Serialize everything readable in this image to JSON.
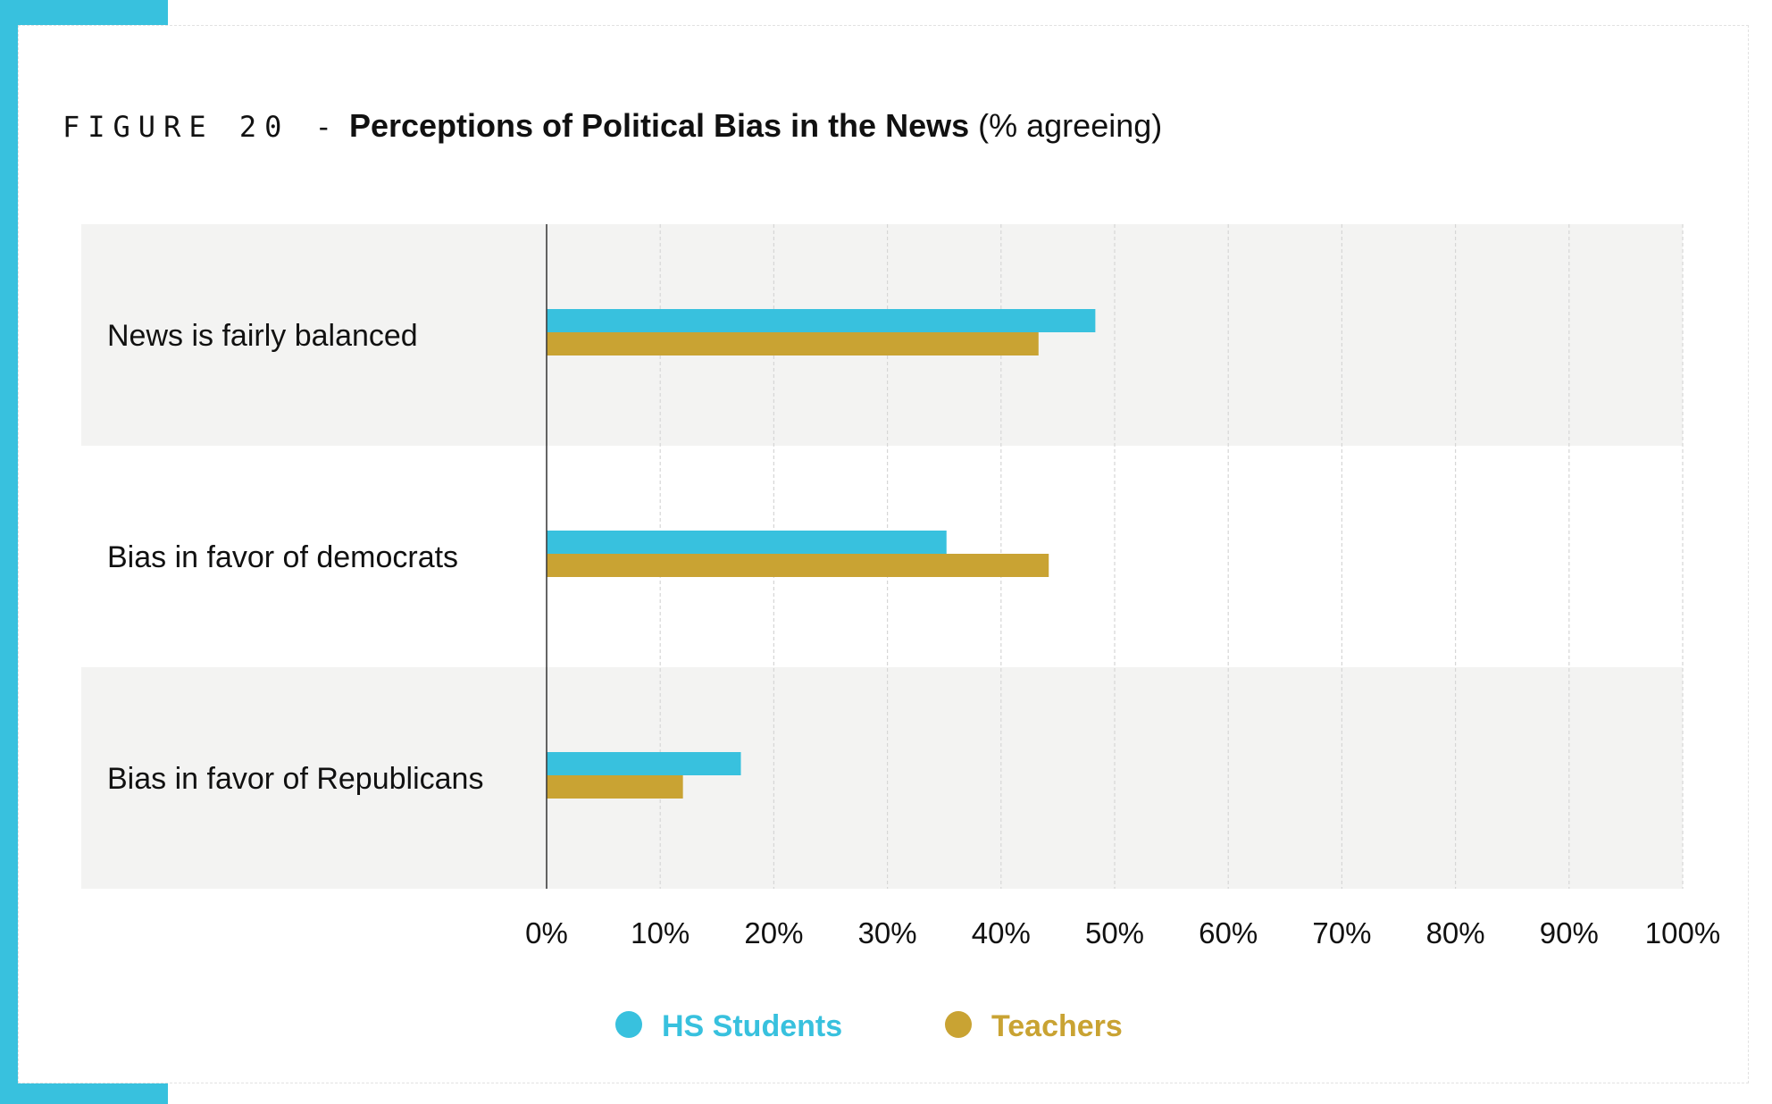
{
  "title": {
    "figure": "FIGURE 20 -",
    "main": "Perceptions of Political Bias in the News",
    "suffix": "(% agreeing)"
  },
  "colors": {
    "hs_students": "#38c1de",
    "teachers": "#c9a333",
    "band": "#f3f3f2"
  },
  "chart_data": {
    "type": "bar",
    "orientation": "horizontal",
    "title": "Perceptions of Political Bias in the News (% agreeing)",
    "categories": [
      "News is fairly balanced",
      "Bias in favor of democrats",
      "Bias in favor of Republicans"
    ],
    "series": [
      {
        "name": "HS Students",
        "values": [
          48.3,
          35.2,
          17.1
        ]
      },
      {
        "name": "Teachers",
        "values": [
          43.3,
          44.2,
          12.0
        ]
      }
    ],
    "xlim": [
      0,
      100
    ],
    "ticks": [
      "0%",
      "10%",
      "20%",
      "30%",
      "40%",
      "50%",
      "60%",
      "70%",
      "80%",
      "90%",
      "100%"
    ],
    "grid": true,
    "legend": "bottom-center"
  }
}
